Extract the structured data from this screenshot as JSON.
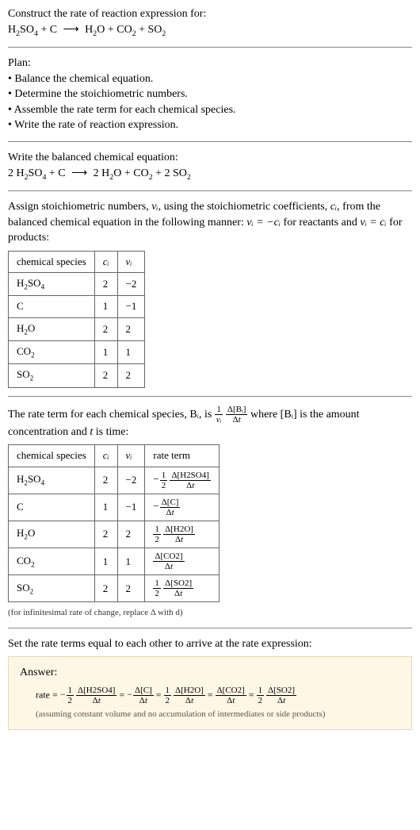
{
  "header": {
    "prompt": "Construct the rate of reaction expression for:",
    "equation_lhs": [
      "H₂SO₄",
      "C"
    ],
    "equation_rhs": [
      "H₂O",
      "CO₂",
      "SO₂"
    ]
  },
  "plan": {
    "title": "Plan:",
    "items": [
      "Balance the chemical equation.",
      "Determine the stoichiometric numbers.",
      "Assemble the rate term for each chemical species.",
      "Write the rate of reaction expression."
    ]
  },
  "balanced": {
    "title": "Write the balanced chemical equation:",
    "lhs": [
      {
        "c": "2",
        "sp": "H₂SO₄"
      },
      {
        "c": "",
        "sp": "C"
      }
    ],
    "rhs": [
      {
        "c": "2",
        "sp": "H₂O"
      },
      {
        "c": "",
        "sp": "CO₂"
      },
      {
        "c": "2",
        "sp": "SO₂"
      }
    ]
  },
  "stoich_intro": {
    "text_a": "Assign stoichiometric numbers, ",
    "nu": "νᵢ",
    "text_b": ", using the stoichiometric coefficients, ",
    "ci": "cᵢ",
    "text_c": ", from the balanced chemical equation in the following manner: ",
    "rel1": "νᵢ = −cᵢ",
    "text_d": " for reactants and ",
    "rel2": "νᵢ = cᵢ",
    "text_e": " for products:"
  },
  "table1": {
    "headers": [
      "chemical species",
      "cᵢ",
      "νᵢ"
    ],
    "rows": [
      [
        "H₂SO₄",
        "2",
        "−2"
      ],
      [
        "C",
        "1",
        "−1"
      ],
      [
        "H₂O",
        "2",
        "2"
      ],
      [
        "CO₂",
        "1",
        "1"
      ],
      [
        "SO₂",
        "2",
        "2"
      ]
    ]
  },
  "rate_intro": {
    "text_a": "The rate term for each chemical species, Bᵢ, is ",
    "text_b": " where [Bᵢ] is the amount concentration and ",
    "tvar": "t",
    "text_c": " is time:",
    "f1": {
      "num": "1",
      "den": "νᵢ"
    },
    "f2": {
      "num": "Δ[Bᵢ]",
      "den": "Δt"
    }
  },
  "table2": {
    "headers": [
      "chemical species",
      "cᵢ",
      "νᵢ",
      "rate term"
    ],
    "rows": [
      {
        "sp": "H₂SO₄",
        "c": "2",
        "nu": "−2",
        "neg": true,
        "coef": {
          "num": "1",
          "den": "2"
        },
        "d": {
          "num": "Δ[H2SO4]",
          "den": "Δt"
        }
      },
      {
        "sp": "C",
        "c": "1",
        "nu": "−1",
        "neg": true,
        "coef": null,
        "d": {
          "num": "Δ[C]",
          "den": "Δt"
        }
      },
      {
        "sp": "H₂O",
        "c": "2",
        "nu": "2",
        "neg": false,
        "coef": {
          "num": "1",
          "den": "2"
        },
        "d": {
          "num": "Δ[H2O]",
          "den": "Δt"
        }
      },
      {
        "sp": "CO₂",
        "c": "1",
        "nu": "1",
        "neg": false,
        "coef": null,
        "d": {
          "num": "Δ[CO2]",
          "den": "Δt"
        }
      },
      {
        "sp": "SO₂",
        "c": "2",
        "nu": "2",
        "neg": false,
        "coef": {
          "num": "1",
          "den": "2"
        },
        "d": {
          "num": "Δ[SO2]",
          "den": "Δt"
        }
      }
    ],
    "note": "(for infinitesimal rate of change, replace Δ with d)"
  },
  "final_title": "Set the rate terms equal to each other to arrive at the rate expression:",
  "answer": {
    "label": "Answer:",
    "prefix": "rate = ",
    "terms": [
      {
        "neg": true,
        "coef": {
          "num": "1",
          "den": "2"
        },
        "d": {
          "num": "Δ[H2SO4]",
          "den": "Δt"
        }
      },
      {
        "neg": true,
        "coef": null,
        "d": {
          "num": "Δ[C]",
          "den": "Δt"
        }
      },
      {
        "neg": false,
        "coef": {
          "num": "1",
          "den": "2"
        },
        "d": {
          "num": "Δ[H2O]",
          "den": "Δt"
        }
      },
      {
        "neg": false,
        "coef": null,
        "d": {
          "num": "Δ[CO2]",
          "den": "Δt"
        }
      },
      {
        "neg": false,
        "coef": {
          "num": "1",
          "den": "2"
        },
        "d": {
          "num": "Δ[SO2]",
          "den": "Δt"
        }
      }
    ],
    "note": "(assuming constant volume and no accumulation of intermediates or side products)"
  },
  "colors": {
    "answer_bg": "#fff7e6",
    "answer_border": "#e6d9b8"
  }
}
